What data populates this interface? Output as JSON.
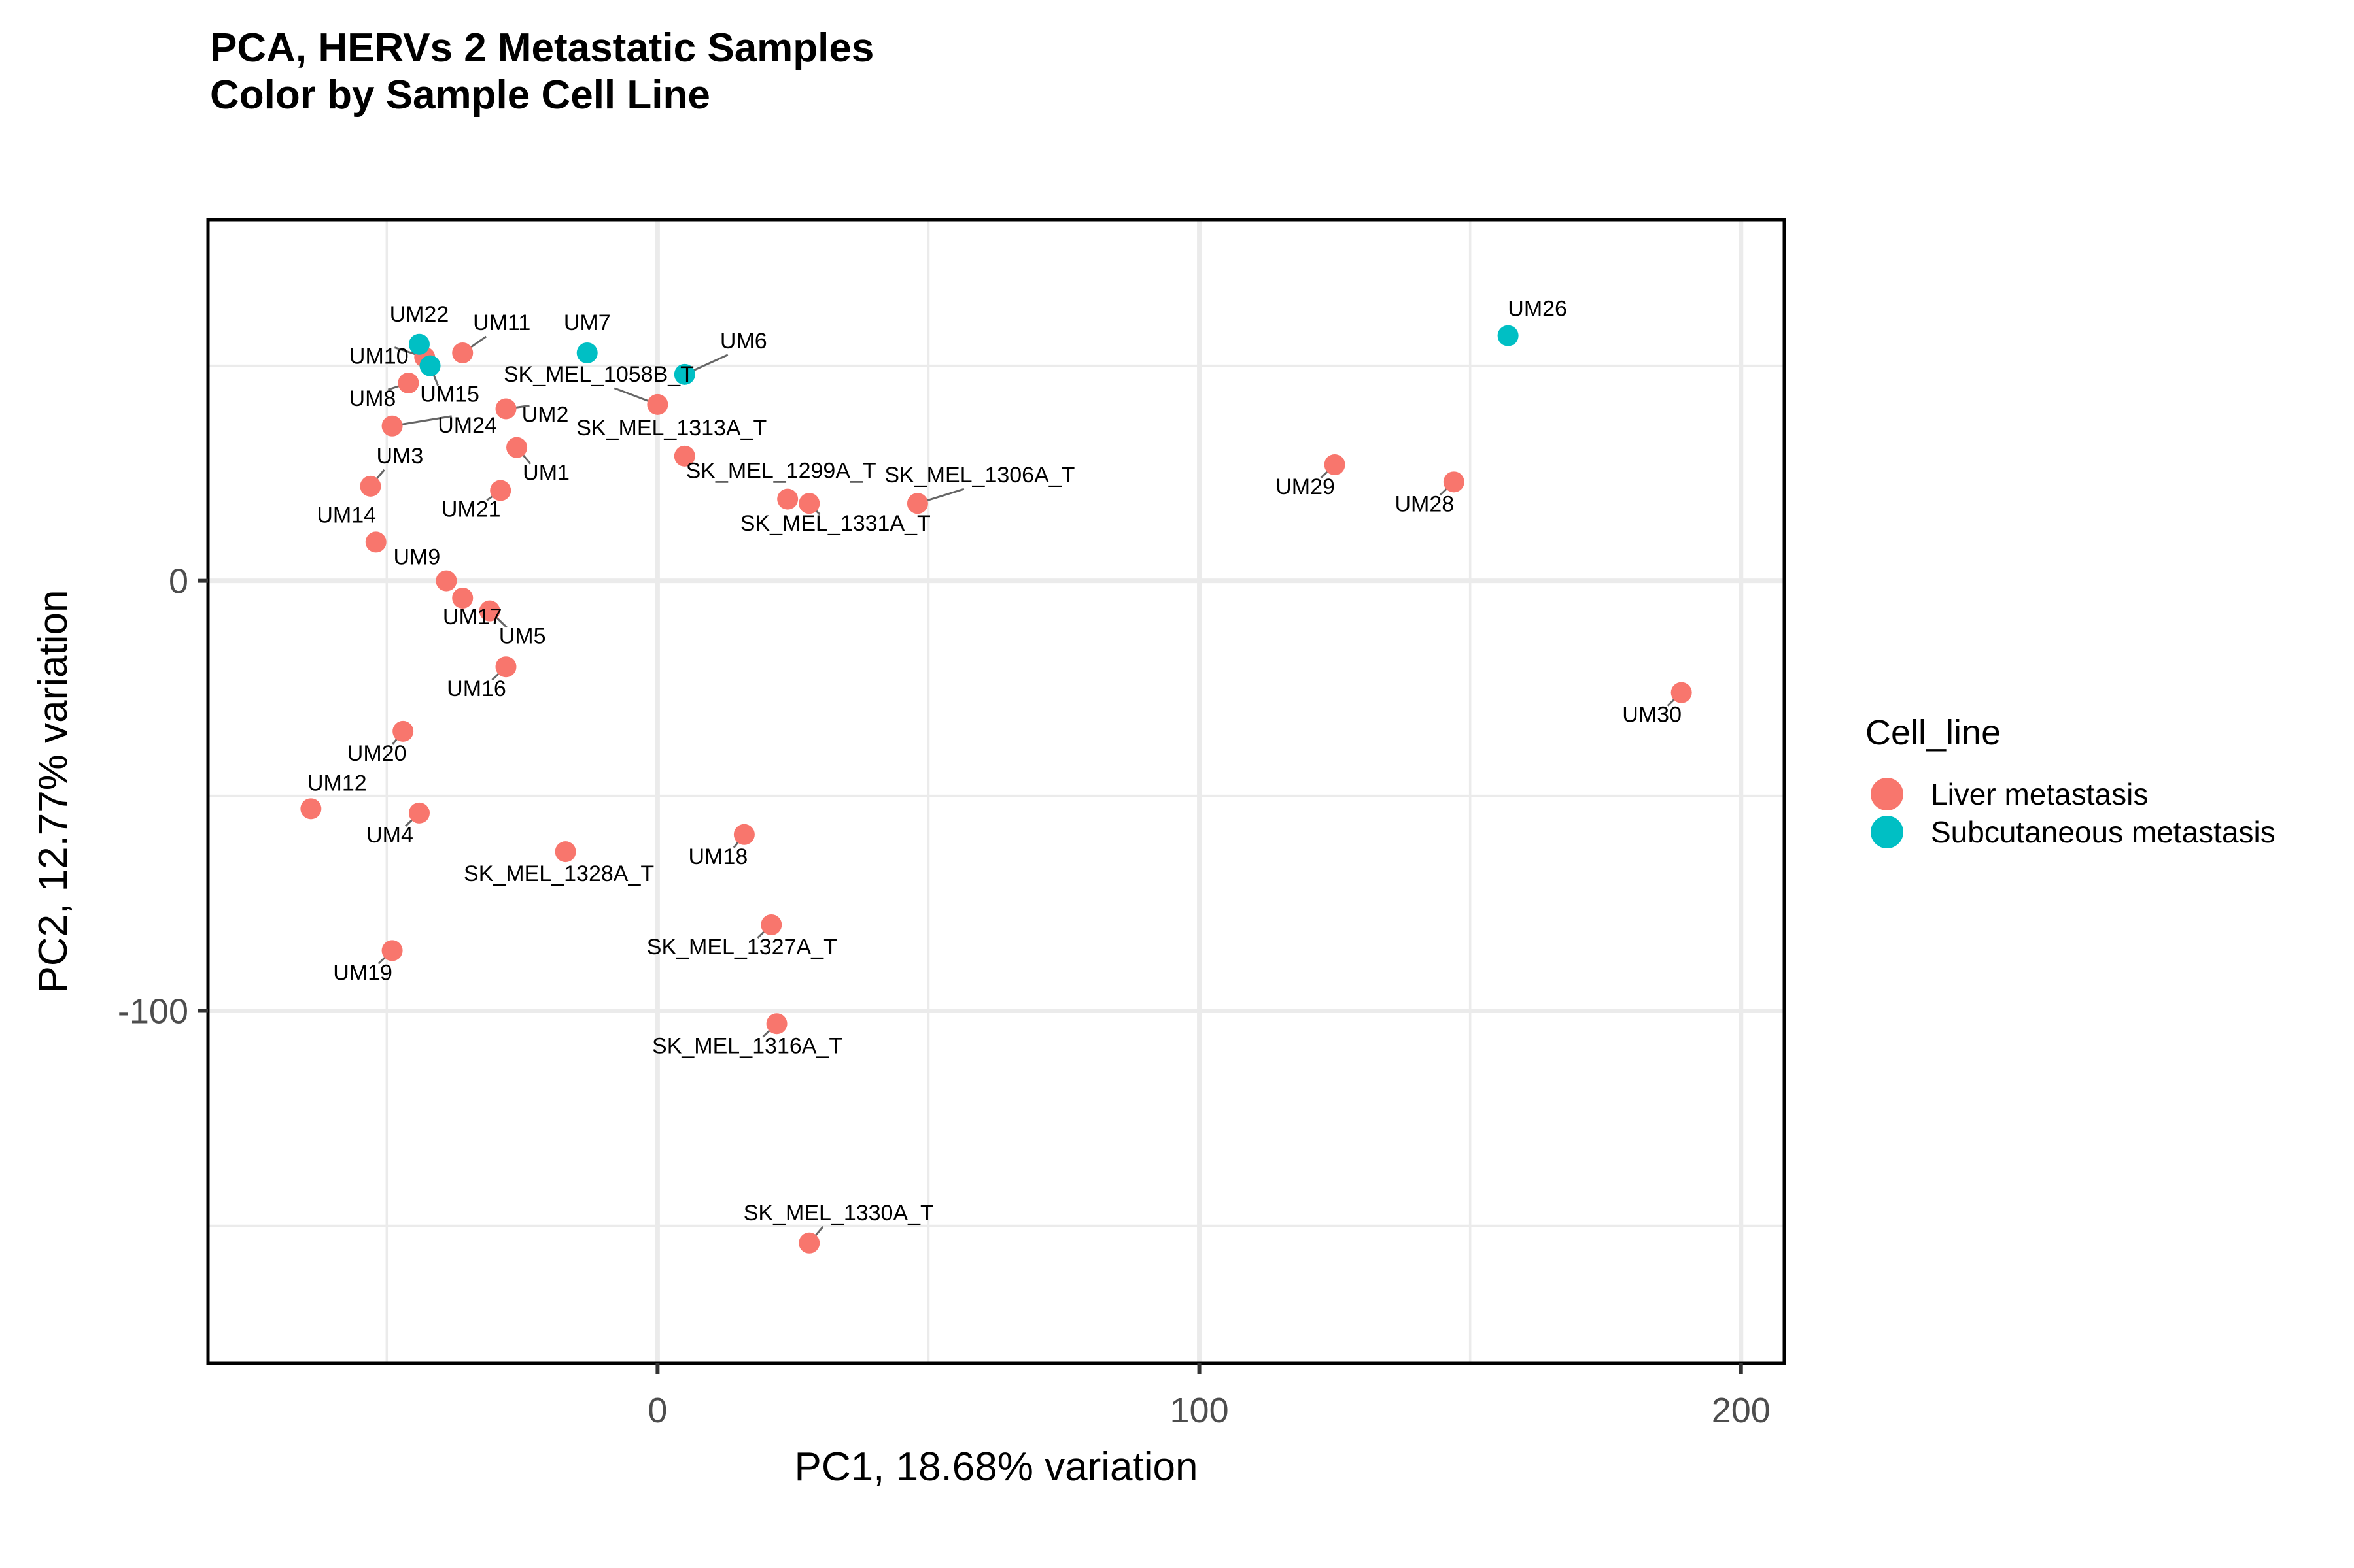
{
  "chart_data": {
    "type": "scatter",
    "title": "PCA, HERVs 2 Metastatic Samples",
    "subtitle": "Color by Sample Cell Line",
    "xlabel": "PC1, 18.68% variation",
    "ylabel": "PC2, 12.77% variation",
    "xlim": [
      -83,
      208
    ],
    "ylim": [
      -182,
      84
    ],
    "xticks": [
      0,
      100,
      200
    ],
    "yticks": [
      0,
      -100
    ],
    "grid": true,
    "legend": {
      "title": "Cell_line",
      "position": "right",
      "entries": [
        {
          "name": "Liver metastasis",
          "color": "#F8766D"
        },
        {
          "name": "Subcutaneous metastasis",
          "color": "#00BFC4"
        }
      ]
    },
    "series": [
      {
        "name": "Liver metastasis",
        "color": "#F8766D",
        "points": [
          {
            "label": "UM10",
            "x": -43,
            "y": 52
          },
          {
            "label": "UM11",
            "x": -36,
            "y": 53
          },
          {
            "label": "SK_MEL_1058B_T",
            "x": 0,
            "y": 41
          },
          {
            "label": "UM8",
            "x": -46,
            "y": 46
          },
          {
            "label": "UM2",
            "x": -28,
            "y": 40
          },
          {
            "label": "UM24",
            "x": -49,
            "y": 36
          },
          {
            "label": "UM1",
            "x": -26,
            "y": 31
          },
          {
            "label": "SK_MEL_1313A_T",
            "x": 5,
            "y": 29
          },
          {
            "label": "UM3",
            "x": -53,
            "y": 22
          },
          {
            "label": "UM21",
            "x": -29,
            "y": 21
          },
          {
            "label": "SK_MEL_1299A_T",
            "x": 24,
            "y": 19
          },
          {
            "label": "SK_MEL_1331A_T",
            "x": 28,
            "y": 18
          },
          {
            "label": "SK_MEL_1306A_T",
            "x": 48,
            "y": 18
          },
          {
            "label": "UM14",
            "x": -52,
            "y": 9
          },
          {
            "label": "UM9",
            "x": -39,
            "y": 0
          },
          {
            "label": "UM17",
            "x": -36,
            "y": -4
          },
          {
            "label": "UM5",
            "x": -31,
            "y": -7
          },
          {
            "label": "UM16",
            "x": -28,
            "y": -20
          },
          {
            "label": "UM20",
            "x": -47,
            "y": -35
          },
          {
            "label": "UM12",
            "x": -64,
            "y": -53
          },
          {
            "label": "UM4",
            "x": -44,
            "y": -54
          },
          {
            "label": "SK_MEL_1328A_T",
            "x": -17,
            "y": -63
          },
          {
            "label": "UM18",
            "x": 16,
            "y": -59
          },
          {
            "label": "SK_MEL_1327A_T",
            "x": 21,
            "y": -80
          },
          {
            "label": "UM19",
            "x": -49,
            "y": -86
          },
          {
            "label": "SK_MEL_1316A_T",
            "x": 22,
            "y": -103
          },
          {
            "label": "SK_MEL_1330A_T",
            "x": 28,
            "y": -154
          },
          {
            "label": "UM29",
            "x": 125,
            "y": 27
          },
          {
            "label": "UM28",
            "x": 147,
            "y": 23
          },
          {
            "label": "UM30",
            "x": 189,
            "y": -26
          }
        ]
      },
      {
        "name": "Subcutaneous metastasis",
        "color": "#00BFC4",
        "points": [
          {
            "label": "UM22",
            "x": -44,
            "y": 55
          },
          {
            "label": "UM15",
            "x": -42,
            "y": 50
          },
          {
            "label": "UM7",
            "x": -13,
            "y": 53
          },
          {
            "label": "UM6",
            "x": 5,
            "y": 48
          },
          {
            "label": "UM26",
            "x": 157,
            "y": 57
          }
        ]
      }
    ]
  }
}
